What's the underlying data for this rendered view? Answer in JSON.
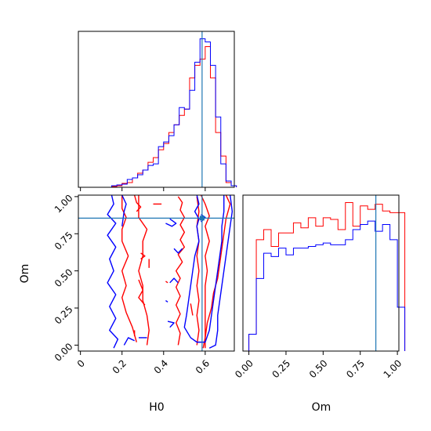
{
  "chart_data": {
    "type": "corner",
    "parameters": [
      "H0",
      "Om"
    ],
    "truth": {
      "H0": 0.585,
      "Om": 0.855
    },
    "truth_color": "#1f77b4",
    "series": [
      {
        "color": "#ff0000"
      },
      {
        "color": "#0000ff"
      }
    ],
    "histograms": [
      {
        "parameter": "H0",
        "xlim": [
          -0.01,
          0.74
        ],
        "x_ticks": [
          0.0,
          0.2,
          0.4,
          0.6
        ],
        "bins": [
          0.0,
          0.025,
          0.05,
          0.075,
          0.1,
          0.125,
          0.15,
          0.175,
          0.2,
          0.225,
          0.25,
          0.275,
          0.3,
          0.325,
          0.35,
          0.375,
          0.4,
          0.425,
          0.45,
          0.475,
          0.5,
          0.525,
          0.55,
          0.575,
          0.6,
          0.625,
          0.65,
          0.675,
          0.7,
          0.725
        ],
        "series_values": [
          [
            0,
            0,
            0,
            0,
            0,
            0,
            0.005,
            0.01,
            0.025,
            0.03,
            0.06,
            0.09,
            0.11,
            0.16,
            0.19,
            0.24,
            0.28,
            0.35,
            0.4,
            0.46,
            0.5,
            0.7,
            0.78,
            0.82,
            0.9,
            0.7,
            0.35,
            0.2,
            0.03,
            0.01
          ],
          [
            0,
            0,
            0,
            0,
            0,
            0,
            0.01,
            0.015,
            0.02,
            0.05,
            0.06,
            0.08,
            0.11,
            0.14,
            0.15,
            0.26,
            0.29,
            0.33,
            0.4,
            0.51,
            0.5,
            0.62,
            0.8,
            0.95,
            0.93,
            0.78,
            0.45,
            0.15,
            0.04,
            0.01
          ]
        ]
      },
      {
        "parameter": "Om",
        "xlim": [
          -0.04,
          1.01
        ],
        "x_ticks": [
          0.0,
          0.25,
          0.5,
          0.75,
          1.0
        ],
        "x_tick_labels": [
          "0.00",
          "0.25",
          "0.50",
          "0.75",
          "1.00"
        ],
        "bins": [
          0.0,
          0.05,
          0.1,
          0.15,
          0.2,
          0.25,
          0.3,
          0.35,
          0.4,
          0.45,
          0.5,
          0.55,
          0.6,
          0.65,
          0.7,
          0.75,
          0.8,
          0.85,
          0.9,
          0.95,
          1.0
        ],
        "series_values": [
          [
            0.1,
            0.66,
            0.72,
            0.62,
            0.7,
            0.7,
            0.76,
            0.73,
            0.79,
            0.74,
            0.79,
            0.78,
            0.72,
            0.88,
            0.74,
            0.86,
            0.84,
            0.87,
            0.83,
            0.82,
            0.82
          ],
          [
            0.1,
            0.43,
            0.58,
            0.56,
            0.61,
            0.57,
            0.61,
            0.61,
            0.62,
            0.63,
            0.64,
            0.63,
            0.63,
            0.66,
            0.72,
            0.75,
            0.77,
            0.71,
            0.75,
            0.66,
            0.26
          ]
        ]
      }
    ],
    "contour_panel": {
      "x_parameter": "H0",
      "y_parameter": "Om",
      "xlim": [
        -0.01,
        0.74
      ],
      "ylim": [
        -0.04,
        1.01
      ],
      "x_ticks": [
        0.0,
        0.2,
        0.4,
        0.6
      ],
      "y_ticks": [
        0.0,
        0.25,
        0.5,
        0.75,
        1.0
      ],
      "y_tick_labels": [
        "0.00",
        "0.25",
        "0.50",
        "0.75",
        "1.00"
      ],
      "contours": [
        {
          "series": 0,
          "paths": [
            [
              [
                0.2,
                1.01
              ],
              [
                0.2,
                0.92
              ],
              [
                0.22,
                0.86
              ],
              [
                0.2,
                0.78
              ],
              [
                0.2,
                0.7
              ],
              [
                0.23,
                0.6
              ],
              [
                0.2,
                0.5
              ],
              [
                0.22,
                0.4
              ],
              [
                0.2,
                0.32
              ],
              [
                0.22,
                0.22
              ],
              [
                0.25,
                0.12
              ],
              [
                0.27,
                0.02
              ]
            ],
            [
              [
                0.28,
                1.01
              ],
              [
                0.28,
                0.86
              ],
              [
                0.32,
                0.78
              ],
              [
                0.3,
                0.7
              ],
              [
                0.3,
                0.6
              ],
              [
                0.28,
                0.5
              ],
              [
                0.3,
                0.4
              ],
              [
                0.3,
                0.3
              ],
              [
                0.32,
                0.2
              ],
              [
                0.33,
                0.1
              ],
              [
                0.32,
                0.0
              ]
            ],
            [
              [
                0.58,
                1.01
              ],
              [
                0.6,
                0.95
              ],
              [
                0.62,
                0.87
              ],
              [
                0.6,
                0.8
              ],
              [
                0.62,
                0.7
              ],
              [
                0.6,
                0.6
              ],
              [
                0.61,
                0.5
              ],
              [
                0.6,
                0.4
              ],
              [
                0.6,
                0.3
              ],
              [
                0.6,
                0.2
              ],
              [
                0.6,
                0.1
              ],
              [
                0.6,
                -0.02
              ]
            ],
            [
              [
                0.7,
                1.01
              ],
              [
                0.72,
                0.95
              ],
              [
                0.7,
                0.85
              ],
              [
                0.69,
                0.75
              ],
              [
                0.68,
                0.65
              ],
              [
                0.67,
                0.55
              ],
              [
                0.66,
                0.45
              ],
              [
                0.64,
                0.35
              ],
              [
                0.63,
                0.25
              ],
              [
                0.61,
                0.15
              ],
              [
                0.6,
                0.05
              ],
              [
                0.59,
                -0.02
              ]
            ],
            [
              [
                0.47,
                1.0
              ],
              [
                0.49,
                0.96
              ],
              [
                0.48,
                0.91
              ],
              [
                0.5,
                0.86
              ],
              [
                0.48,
                0.81
              ],
              [
                0.5,
                0.76
              ],
              [
                0.48,
                0.71
              ],
              [
                0.5,
                0.66
              ],
              [
                0.47,
                0.61
              ],
              [
                0.49,
                0.56
              ],
              [
                0.46,
                0.5
              ],
              [
                0.48,
                0.45
              ],
              [
                0.46,
                0.39
              ],
              [
                0.48,
                0.33
              ],
              [
                0.46,
                0.27
              ],
              [
                0.48,
                0.21
              ],
              [
                0.46,
                0.15
              ],
              [
                0.48,
                0.08
              ],
              [
                0.47,
                0.0
              ]
            ],
            [
              [
                0.56,
                1.0
              ],
              [
                0.57,
                0.9
              ],
              [
                0.56,
                0.8
              ],
              [
                0.57,
                0.7
              ],
              [
                0.56,
                0.6
              ],
              [
                0.57,
                0.5
              ],
              [
                0.56,
                0.4
              ],
              [
                0.57,
                0.3
              ],
              [
                0.56,
                0.2
              ],
              [
                0.57,
                0.1
              ],
              [
                0.56,
                0.0
              ]
            ],
            [
              [
                0.26,
                1.01
              ],
              [
                0.27,
                0.96
              ],
              [
                0.29,
                0.93
              ],
              [
                0.27,
                0.9
              ]
            ],
            [
              [
                0.35,
                0.95
              ],
              [
                0.39,
                0.95
              ]
            ],
            [
              [
                0.28,
                0.44
              ],
              [
                0.3,
                0.37
              ],
              [
                0.28,
                0.32
              ],
              [
                0.31,
                0.27
              ]
            ],
            [
              [
                0.29,
                0.62
              ],
              [
                0.31,
                0.6
              ],
              [
                0.29,
                0.58
              ]
            ],
            [
              [
                0.33,
                0.58
              ],
              [
                0.33,
                0.52
              ]
            ],
            [
              [
                0.26,
                0.1
              ],
              [
                0.26,
                0.06
              ]
            ],
            [
              [
                0.53,
                0.28
              ],
              [
                0.54,
                0.2
              ]
            ],
            [
              [
                0.41,
                0.43
              ],
              [
                0.42,
                0.42
              ]
            ]
          ]
        },
        {
          "series": 1,
          "paths": [
            [
              [
                0.15,
                1.01
              ],
              [
                0.16,
                0.95
              ],
              [
                0.13,
                0.88
              ],
              [
                0.17,
                0.82
              ],
              [
                0.13,
                0.74
              ],
              [
                0.17,
                0.66
              ],
              [
                0.14,
                0.58
              ],
              [
                0.16,
                0.5
              ],
              [
                0.13,
                0.42
              ],
              [
                0.17,
                0.34
              ],
              [
                0.14,
                0.26
              ],
              [
                0.17,
                0.18
              ],
              [
                0.14,
                0.1
              ],
              [
                0.18,
                0.04
              ],
              [
                0.16,
                -0.02
              ]
            ],
            [
              [
                0.2,
                1.01
              ],
              [
                0.22,
                0.95
              ],
              [
                0.21,
                0.9
              ],
              [
                0.2,
                0.8
              ]
            ],
            [
              [
                0.72,
                1.01
              ],
              [
                0.73,
                0.9
              ],
              [
                0.72,
                0.8
              ],
              [
                0.71,
                0.7
              ],
              [
                0.7,
                0.6
              ],
              [
                0.69,
                0.5
              ],
              [
                0.68,
                0.4
              ],
              [
                0.67,
                0.3
              ],
              [
                0.66,
                0.2
              ],
              [
                0.66,
                0.1
              ],
              [
                0.65,
                0.0
              ],
              [
                0.62,
                -0.02
              ]
            ],
            [
              [
                0.56,
                1.01
              ],
              [
                0.57,
                0.95
              ],
              [
                0.55,
                0.9
              ],
              [
                0.57,
                0.85
              ],
              [
                0.56,
                0.8
              ],
              [
                0.57,
                0.7
              ],
              [
                0.55,
                0.6
              ],
              [
                0.54,
                0.5
              ],
              [
                0.53,
                0.4
              ],
              [
                0.52,
                0.3
              ],
              [
                0.51,
                0.2
              ],
              [
                0.5,
                0.12
              ],
              [
                0.53,
                0.05
              ],
              [
                0.56,
                0.02
              ],
              [
                0.6,
                0.02
              ],
              [
                0.62,
                0.1
              ],
              [
                0.63,
                0.2
              ],
              [
                0.64,
                0.3
              ],
              [
                0.65,
                0.4
              ],
              [
                0.66,
                0.5
              ],
              [
                0.67,
                0.6
              ],
              [
                0.68,
                0.7
              ],
              [
                0.68,
                0.8
              ],
              [
                0.69,
                0.9
              ],
              [
                0.69,
                1.01
              ]
            ],
            [
              [
                0.21,
                0.0
              ],
              [
                0.23,
                0.05
              ],
              [
                0.26,
                0.03
              ]
            ],
            [
              [
                0.28,
                0.05
              ],
              [
                0.32,
                0.05
              ]
            ],
            [
              [
                0.42,
                0.16
              ],
              [
                0.45,
                0.15
              ],
              [
                0.43,
                0.12
              ]
            ],
            [
              [
                0.41,
                0.3
              ],
              [
                0.42,
                0.29
              ]
            ],
            [
              [
                0.43,
                0.42
              ],
              [
                0.45,
                0.45
              ],
              [
                0.47,
                0.42
              ]
            ],
            [
              [
                0.45,
                0.65
              ],
              [
                0.47,
                0.62
              ],
              [
                0.49,
                0.65
              ]
            ],
            [
              [
                0.41,
                0.82
              ],
              [
                0.44,
                0.8
              ],
              [
                0.46,
                0.82
              ],
              [
                0.43,
                0.85
              ]
            ],
            [
              [
                0.58,
                0.83
              ],
              [
                0.6,
                0.86
              ],
              [
                0.58,
                0.88
              ]
            ]
          ]
        }
      ]
    },
    "xlabels": [
      "H0",
      "Om"
    ],
    "ylabel": "Om"
  }
}
